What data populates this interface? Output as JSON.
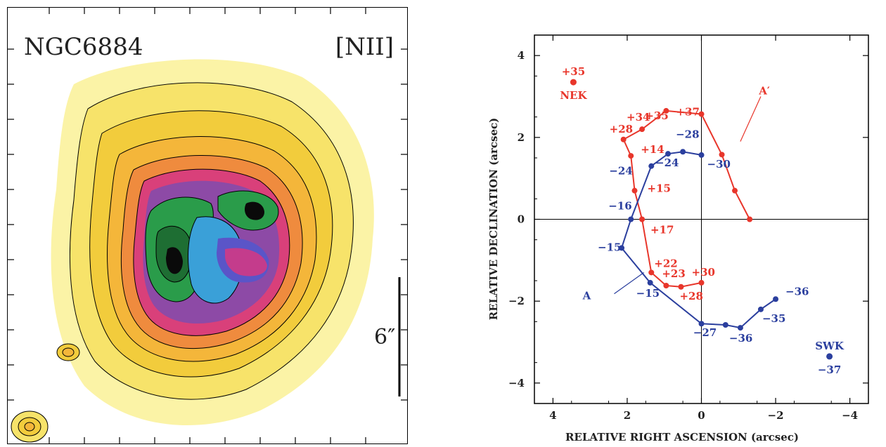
{
  "left_panel": {
    "object_label": "NGC6884",
    "line_label": "[NII]",
    "scale_label": "6″"
  },
  "chart_data": {
    "type": "scatter",
    "xlabel": "RELATIVE RIGHT ASCENSION (arcsec)",
    "ylabel": "RELATIVE DECLINATION (arcsec)",
    "xlim": [
      4.5,
      -4.5
    ],
    "ylim": [
      -4.5,
      4.5
    ],
    "xticks": [
      4,
      2,
      0,
      -2,
      -4
    ],
    "yticks": [
      -4,
      -2,
      0,
      2,
      4
    ],
    "xtick_labels": [
      "4",
      "2",
      "0",
      "−2",
      "−4"
    ],
    "ytick_labels": [
      "−4",
      "−2",
      "0",
      "2",
      "4"
    ],
    "axis_lines_at_zero": true,
    "colors": {
      "red": "#e8362b",
      "blue": "#2b3f9e"
    },
    "series": [
      {
        "color": "red",
        "x": [
          0.0,
          0.55,
          0.95,
          1.35,
          1.6,
          1.8,
          1.9,
          2.1,
          1.6,
          0.95,
          0.0,
          -0.55,
          -0.9,
          -1.3
        ],
        "y": [
          -1.55,
          -1.65,
          -1.62,
          -1.3,
          0.0,
          0.7,
          1.55,
          1.95,
          2.2,
          2.65,
          2.57,
          1.58,
          0.7,
          0.0
        ],
        "labels": [
          "+30",
          "+28",
          "+23",
          "+22",
          "+17",
          "+15",
          "+14",
          "+28",
          "+34",
          "+35",
          "+37",
          "",
          "",
          ""
        ]
      },
      {
        "color": "blue",
        "x": [
          -2.0,
          -1.6,
          -1.05,
          -0.65,
          0.0,
          1.38,
          2.15,
          1.9,
          1.35,
          0.9,
          0.5,
          0.0
        ],
        "y": [
          -1.95,
          -2.2,
          -2.65,
          -2.58,
          -2.55,
          -1.55,
          -0.7,
          0.0,
          1.3,
          1.6,
          1.65,
          1.57
        ],
        "labels": [
          "−36",
          "−35",
          "−36",
          "−27",
          "",
          "−15",
          "−15",
          "−16",
          "−24",
          "−24",
          "−28",
          "−30"
        ]
      }
    ],
    "points": [
      {
        "label": "NEK",
        "value": "+35",
        "x": 3.45,
        "y": 3.35,
        "color": "red"
      },
      {
        "label": "SWK",
        "value": "−37",
        "x": -3.45,
        "y": -3.35,
        "color": "blue"
      }
    ],
    "annotations": [
      {
        "text": "A′",
        "color": "red"
      },
      {
        "text": "A",
        "color": "blue"
      }
    ]
  }
}
